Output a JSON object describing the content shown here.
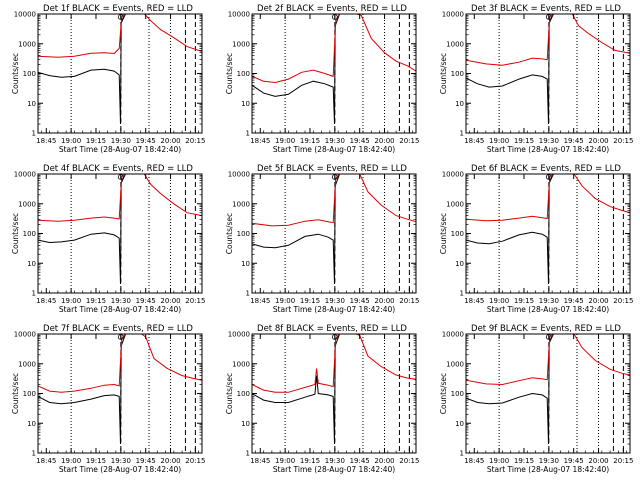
{
  "chart_data": {
    "type": "line",
    "layout": "3x3 grid",
    "shared": {
      "xlabel": "Start Time (28-Aug-07 18:42:40)",
      "ylabel": "Counts/sec",
      "y_scale": "log",
      "ylim": [
        1,
        10000
      ],
      "y_tick_labels": [
        "1",
        "10",
        "100",
        "1000",
        "10000"
      ],
      "x_range_min": [
        -2,
        97
      ],
      "x_tick_minutes": [
        3,
        18,
        33,
        48,
        63,
        78,
        93
      ],
      "x_tick_labels": [
        "18:45",
        "19:00",
        "19:15",
        "19:30",
        "19:45",
        "20:00",
        "20:15"
      ],
      "vlines_minutes": [
        {
          "x": 18,
          "style": "dotted"
        },
        {
          "x": 65,
          "style": "dotted"
        },
        {
          "x": 78,
          "style": "dotted"
        },
        {
          "x": 48,
          "style": "dashed"
        },
        {
          "x": 87,
          "style": "dashed"
        },
        {
          "x": 93,
          "style": "dashed"
        }
      ],
      "series_colors": {
        "black": "#000000",
        "red": "#e00000"
      }
    },
    "panels": [
      {
        "title": "Det 1f BLACK = Events, RED = LLD",
        "red": [
          {
            "t": -2,
            "v": 380
          },
          {
            "t": 10,
            "v": 350
          },
          {
            "t": 20,
            "v": 380
          },
          {
            "t": 30,
            "v": 480
          },
          {
            "t": 38,
            "v": 500
          },
          {
            "t": 44,
            "v": 470
          },
          {
            "t": 47,
            "v": 700
          },
          {
            "t": 48.5,
            "v": 8000
          },
          {
            "t": 51,
            "v": 15000
          },
          {
            "t": 55,
            "v": 15000
          },
          {
            "t": 60,
            "v": 15000
          },
          {
            "t": 62,
            "v": 13000
          },
          {
            "t": 66,
            "v": 6000
          },
          {
            "t": 72,
            "v": 3000
          },
          {
            "t": 80,
            "v": 1600
          },
          {
            "t": 88,
            "v": 800
          },
          {
            "t": 93,
            "v": 650
          },
          {
            "t": 97,
            "v": 550
          }
        ],
        "black": [
          {
            "t": -2,
            "v": 110
          },
          {
            "t": 5,
            "v": 85
          },
          {
            "t": 12,
            "v": 75
          },
          {
            "t": 20,
            "v": 80
          },
          {
            "t": 30,
            "v": 130
          },
          {
            "t": 38,
            "v": 140
          },
          {
            "t": 44,
            "v": 120
          },
          {
            "t": 47,
            "v": 90
          },
          {
            "t": 47.8,
            "v": 2
          },
          {
            "t": 48.2,
            "v": 5000
          },
          {
            "t": 51,
            "v": 15000
          },
          {
            "t": 60,
            "v": 15000
          }
        ]
      },
      {
        "title": "Det 2f BLACK = Events, RED = LLD",
        "red": [
          {
            "t": -2,
            "v": 80
          },
          {
            "t": 5,
            "v": 55
          },
          {
            "t": 12,
            "v": 50
          },
          {
            "t": 20,
            "v": 65
          },
          {
            "t": 28,
            "v": 110
          },
          {
            "t": 35,
            "v": 130
          },
          {
            "t": 42,
            "v": 100
          },
          {
            "t": 47,
            "v": 80
          },
          {
            "t": 48.5,
            "v": 6000
          },
          {
            "t": 51,
            "v": 15000
          },
          {
            "t": 60,
            "v": 15000
          },
          {
            "t": 64,
            "v": 9000
          },
          {
            "t": 70,
            "v": 1500
          },
          {
            "t": 78,
            "v": 500
          },
          {
            "t": 85,
            "v": 260
          },
          {
            "t": 92,
            "v": 180
          },
          {
            "t": 97,
            "v": 120
          }
        ],
        "black": [
          {
            "t": -2,
            "v": 40
          },
          {
            "t": 5,
            "v": 22
          },
          {
            "t": 12,
            "v": 17
          },
          {
            "t": 20,
            "v": 20
          },
          {
            "t": 28,
            "v": 40
          },
          {
            "t": 35,
            "v": 55
          },
          {
            "t": 42,
            "v": 45
          },
          {
            "t": 47,
            "v": 35
          },
          {
            "t": 47.8,
            "v": 2
          },
          {
            "t": 48.2,
            "v": 4000
          },
          {
            "t": 51,
            "v": 15000
          },
          {
            "t": 60,
            "v": 15000
          }
        ]
      },
      {
        "title": "Det 3f BLACK = Events, RED = LLD",
        "red": [
          {
            "t": -2,
            "v": 280
          },
          {
            "t": 10,
            "v": 210
          },
          {
            "t": 20,
            "v": 190
          },
          {
            "t": 30,
            "v": 240
          },
          {
            "t": 38,
            "v": 330
          },
          {
            "t": 44,
            "v": 310
          },
          {
            "t": 47,
            "v": 290
          },
          {
            "t": 48.5,
            "v": 8000
          },
          {
            "t": 51,
            "v": 15000
          },
          {
            "t": 60,
            "v": 15000
          },
          {
            "t": 62,
            "v": 11000
          },
          {
            "t": 66,
            "v": 4000
          },
          {
            "t": 72,
            "v": 2200
          },
          {
            "t": 80,
            "v": 1100
          },
          {
            "t": 88,
            "v": 600
          },
          {
            "t": 97,
            "v": 480
          }
        ],
        "black": [
          {
            "t": -2,
            "v": 70
          },
          {
            "t": 5,
            "v": 45
          },
          {
            "t": 12,
            "v": 35
          },
          {
            "t": 20,
            "v": 38
          },
          {
            "t": 30,
            "v": 65
          },
          {
            "t": 38,
            "v": 90
          },
          {
            "t": 44,
            "v": 80
          },
          {
            "t": 47,
            "v": 65
          },
          {
            "t": 47.8,
            "v": 2
          },
          {
            "t": 48.2,
            "v": 5000
          },
          {
            "t": 51,
            "v": 15000
          },
          {
            "t": 60,
            "v": 15000
          }
        ]
      },
      {
        "title": "Det 4f BLACK = Events, RED = LLD",
        "red": [
          {
            "t": -2,
            "v": 280
          },
          {
            "t": 10,
            "v": 260
          },
          {
            "t": 20,
            "v": 280
          },
          {
            "t": 30,
            "v": 330
          },
          {
            "t": 38,
            "v": 360
          },
          {
            "t": 44,
            "v": 330
          },
          {
            "t": 47,
            "v": 310
          },
          {
            "t": 48.5,
            "v": 8000
          },
          {
            "t": 51,
            "v": 15000
          },
          {
            "t": 60,
            "v": 15000
          },
          {
            "t": 62,
            "v": 12000
          },
          {
            "t": 66,
            "v": 4500
          },
          {
            "t": 72,
            "v": 2200
          },
          {
            "t": 80,
            "v": 1000
          },
          {
            "t": 88,
            "v": 500
          },
          {
            "t": 97,
            "v": 400
          }
        ],
        "black": [
          {
            "t": -2,
            "v": 60
          },
          {
            "t": 5,
            "v": 50
          },
          {
            "t": 12,
            "v": 52
          },
          {
            "t": 20,
            "v": 60
          },
          {
            "t": 30,
            "v": 95
          },
          {
            "t": 38,
            "v": 105
          },
          {
            "t": 44,
            "v": 90
          },
          {
            "t": 47,
            "v": 70
          },
          {
            "t": 47.8,
            "v": 2
          },
          {
            "t": 48.2,
            "v": 5000
          },
          {
            "t": 51,
            "v": 15000
          },
          {
            "t": 60,
            "v": 15000
          }
        ]
      },
      {
        "title": "Det 5f BLACK = Events, RED = LLD",
        "red": [
          {
            "t": -2,
            "v": 220
          },
          {
            "t": 10,
            "v": 180
          },
          {
            "t": 20,
            "v": 190
          },
          {
            "t": 30,
            "v": 260
          },
          {
            "t": 38,
            "v": 290
          },
          {
            "t": 44,
            "v": 250
          },
          {
            "t": 47,
            "v": 230
          },
          {
            "t": 48.5,
            "v": 7000
          },
          {
            "t": 51,
            "v": 15000
          },
          {
            "t": 60,
            "v": 15000
          },
          {
            "t": 63,
            "v": 10000
          },
          {
            "t": 68,
            "v": 2500
          },
          {
            "t": 76,
            "v": 900
          },
          {
            "t": 85,
            "v": 400
          },
          {
            "t": 92,
            "v": 300
          },
          {
            "t": 97,
            "v": 250
          }
        ],
        "black": [
          {
            "t": -2,
            "v": 45
          },
          {
            "t": 5,
            "v": 35
          },
          {
            "t": 12,
            "v": 33
          },
          {
            "t": 20,
            "v": 40
          },
          {
            "t": 30,
            "v": 80
          },
          {
            "t": 38,
            "v": 95
          },
          {
            "t": 44,
            "v": 75
          },
          {
            "t": 47,
            "v": 60
          },
          {
            "t": 47.8,
            "v": 2
          },
          {
            "t": 48.2,
            "v": 4000
          },
          {
            "t": 51,
            "v": 15000
          },
          {
            "t": 60,
            "v": 15000
          }
        ]
      },
      {
        "title": "Det 6f BLACK = Events, RED = LLD",
        "red": [
          {
            "t": -2,
            "v": 300
          },
          {
            "t": 10,
            "v": 270
          },
          {
            "t": 20,
            "v": 280
          },
          {
            "t": 30,
            "v": 330
          },
          {
            "t": 38,
            "v": 380
          },
          {
            "t": 44,
            "v": 340
          },
          {
            "t": 47,
            "v": 320
          },
          {
            "t": 48.5,
            "v": 8000
          },
          {
            "t": 51,
            "v": 15000
          },
          {
            "t": 60,
            "v": 15000
          },
          {
            "t": 63,
            "v": 12000
          },
          {
            "t": 68,
            "v": 4000
          },
          {
            "t": 76,
            "v": 1500
          },
          {
            "t": 85,
            "v": 800
          },
          {
            "t": 92,
            "v": 600
          },
          {
            "t": 97,
            "v": 500
          }
        ],
        "black": [
          {
            "t": -2,
            "v": 60
          },
          {
            "t": 5,
            "v": 48
          },
          {
            "t": 12,
            "v": 45
          },
          {
            "t": 20,
            "v": 55
          },
          {
            "t": 30,
            "v": 90
          },
          {
            "t": 38,
            "v": 110
          },
          {
            "t": 44,
            "v": 95
          },
          {
            "t": 47,
            "v": 75
          },
          {
            "t": 47.8,
            "v": 2
          },
          {
            "t": 48.2,
            "v": 5000
          },
          {
            "t": 51,
            "v": 15000
          },
          {
            "t": 60,
            "v": 15000
          }
        ]
      },
      {
        "title": "Det 7f BLACK = Events, RED = LLD",
        "red": [
          {
            "t": -2,
            "v": 180
          },
          {
            "t": 5,
            "v": 120
          },
          {
            "t": 12,
            "v": 110
          },
          {
            "t": 20,
            "v": 120
          },
          {
            "t": 30,
            "v": 150
          },
          {
            "t": 38,
            "v": 190
          },
          {
            "t": 44,
            "v": 200
          },
          {
            "t": 47,
            "v": 180
          },
          {
            "t": 48.5,
            "v": 7000
          },
          {
            "t": 51,
            "v": 15000
          },
          {
            "t": 60,
            "v": 15000
          },
          {
            "t": 63,
            "v": 8000
          },
          {
            "t": 68,
            "v": 1500
          },
          {
            "t": 76,
            "v": 700
          },
          {
            "t": 85,
            "v": 400
          },
          {
            "t": 92,
            "v": 320
          },
          {
            "t": 97,
            "v": 280
          }
        ],
        "black": [
          {
            "t": -2,
            "v": 80
          },
          {
            "t": 5,
            "v": 50
          },
          {
            "t": 12,
            "v": 45
          },
          {
            "t": 20,
            "v": 50
          },
          {
            "t": 30,
            "v": 65
          },
          {
            "t": 38,
            "v": 85
          },
          {
            "t": 44,
            "v": 90
          },
          {
            "t": 47,
            "v": 80
          },
          {
            "t": 47.8,
            "v": 2
          },
          {
            "t": 48.2,
            "v": 4000
          },
          {
            "t": 51,
            "v": 15000
          },
          {
            "t": 60,
            "v": 15000
          }
        ]
      },
      {
        "title": "Det 8f BLACK = Events, RED = LLD",
        "red": [
          {
            "t": -2,
            "v": 200
          },
          {
            "t": 5,
            "v": 130
          },
          {
            "t": 12,
            "v": 110
          },
          {
            "t": 20,
            "v": 110
          },
          {
            "t": 30,
            "v": 160
          },
          {
            "t": 36,
            "v": 200
          },
          {
            "t": 37,
            "v": 700
          },
          {
            "t": 38,
            "v": 220
          },
          {
            "t": 44,
            "v": 190
          },
          {
            "t": 47,
            "v": 170
          },
          {
            "t": 48.5,
            "v": 7000
          },
          {
            "t": 51,
            "v": 15000
          },
          {
            "t": 60,
            "v": 15000
          },
          {
            "t": 63,
            "v": 9000
          },
          {
            "t": 68,
            "v": 1800
          },
          {
            "t": 76,
            "v": 800
          },
          {
            "t": 85,
            "v": 420
          },
          {
            "t": 92,
            "v": 330
          },
          {
            "t": 97,
            "v": 300
          }
        ],
        "black": [
          {
            "t": -2,
            "v": 100
          },
          {
            "t": 5,
            "v": 60
          },
          {
            "t": 12,
            "v": 50
          },
          {
            "t": 20,
            "v": 50
          },
          {
            "t": 30,
            "v": 75
          },
          {
            "t": 36,
            "v": 95
          },
          {
            "t": 37,
            "v": 400
          },
          {
            "t": 38,
            "v": 100
          },
          {
            "t": 44,
            "v": 90
          },
          {
            "t": 47,
            "v": 80
          },
          {
            "t": 47.8,
            "v": 2
          },
          {
            "t": 48.2,
            "v": 4000
          },
          {
            "t": 51,
            "v": 15000
          },
          {
            "t": 60,
            "v": 15000
          }
        ]
      },
      {
        "title": "Det 9f BLACK = Events, RED = LLD",
        "red": [
          {
            "t": -2,
            "v": 280
          },
          {
            "t": 10,
            "v": 210
          },
          {
            "t": 20,
            "v": 200
          },
          {
            "t": 30,
            "v": 270
          },
          {
            "t": 38,
            "v": 340
          },
          {
            "t": 44,
            "v": 310
          },
          {
            "t": 47,
            "v": 290
          },
          {
            "t": 48.5,
            "v": 8000
          },
          {
            "t": 51,
            "v": 15000
          },
          {
            "t": 60,
            "v": 15000
          },
          {
            "t": 63,
            "v": 11000
          },
          {
            "t": 68,
            "v": 3500
          },
          {
            "t": 76,
            "v": 1300
          },
          {
            "t": 85,
            "v": 650
          },
          {
            "t": 92,
            "v": 480
          },
          {
            "t": 97,
            "v": 420
          }
        ],
        "black": [
          {
            "t": -2,
            "v": 70
          },
          {
            "t": 5,
            "v": 50
          },
          {
            "t": 12,
            "v": 45
          },
          {
            "t": 20,
            "v": 48
          },
          {
            "t": 30,
            "v": 75
          },
          {
            "t": 38,
            "v": 100
          },
          {
            "t": 44,
            "v": 90
          },
          {
            "t": 47,
            "v": 70
          },
          {
            "t": 47.8,
            "v": 2
          },
          {
            "t": 48.2,
            "v": 5000
          },
          {
            "t": 51,
            "v": 15000
          },
          {
            "t": 60,
            "v": 15000
          }
        ]
      }
    ]
  }
}
